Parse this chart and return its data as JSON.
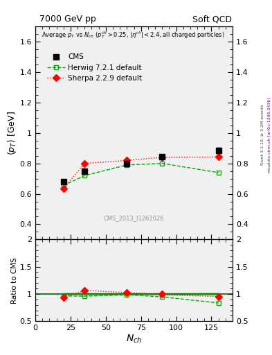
{
  "title_left": "7000 GeV pp",
  "title_right": "Soft QCD",
  "rivet_label": "Rivet 3.1.10, ≥ 3.2M events",
  "mcplots_label": "mcplots.cern.ch [arXiv:1306.3436]",
  "cms_watermark": "CMS_2013_I1261026",
  "xlabel": "N_{ch}",
  "ylabel": "⟨p_{T}⟩ [GeV]",
  "ylabel_ratio": "Ratio to CMS",
  "xlim": [
    0,
    140
  ],
  "ylim_main": [
    0.3,
    1.7
  ],
  "ylim_ratio": [
    0.5,
    2.0
  ],
  "yticks_main": [
    0.4,
    0.6,
    0.8,
    1.0,
    1.2,
    1.4,
    1.6
  ],
  "yticks_ratio": [
    0.5,
    1.0,
    1.5,
    2.0
  ],
  "cms": {
    "label": "CMS",
    "x": [
      20,
      35,
      65,
      90,
      130
    ],
    "y": [
      0.68,
      0.75,
      0.8,
      0.845,
      0.885
    ],
    "yerr": [
      0.015,
      0.015,
      0.015,
      0.015,
      0.02
    ],
    "color": "black",
    "marker": "s",
    "markersize": 6
  },
  "herwig": {
    "label": "Herwig 7.2.1 default",
    "x": [
      20,
      35,
      65,
      90,
      130
    ],
    "y": [
      0.655,
      0.72,
      0.79,
      0.8,
      0.74
    ],
    "color": "#00aa00",
    "marker": "s",
    "markersize": 5,
    "linestyle": "--"
  },
  "sherpa": {
    "label": "Sherpa 2.2.9 default",
    "x": [
      20,
      35,
      65,
      90,
      130
    ],
    "y": [
      0.635,
      0.8,
      0.82,
      0.84,
      0.842
    ],
    "color": "red",
    "marker": "D",
    "markersize": 5,
    "linestyle": ":"
  },
  "bg_color": "#f0f0f0"
}
